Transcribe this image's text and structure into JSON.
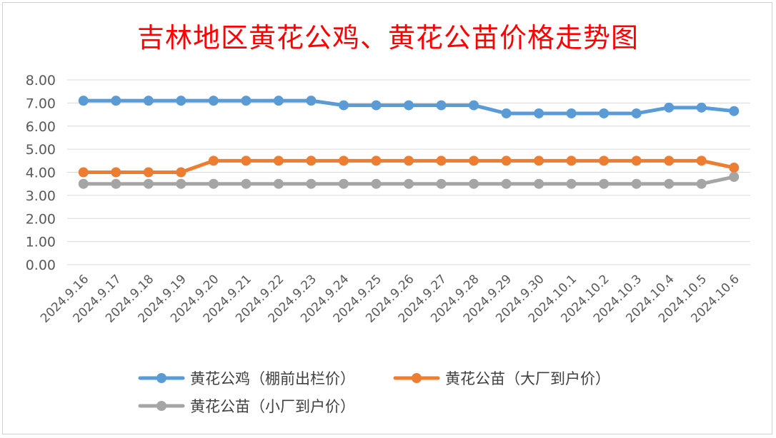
{
  "chart_data": {
    "type": "line",
    "title": "吉林地区黄花公鸡、黄花公苗价格走势图",
    "categories": [
      "2024.9.16",
      "2024.9.17",
      "2024.9.18",
      "2024.9.19",
      "2024.9.20",
      "2024.9.21",
      "2024.9.22",
      "2024.9.23",
      "2024.9.24",
      "2024.9.25",
      "2024.9.26",
      "2024.9.27",
      "2024.9.28",
      "2024.9.29",
      "2024.9.30",
      "2024.10.1",
      "2024.10.2",
      "2024.10.3",
      "2024.10.4",
      "2024.10.5",
      "2024.10.6"
    ],
    "series": [
      {
        "name": "黄花公鸡（棚前出栏价）",
        "color": "#5b9bd5",
        "values": [
          7.1,
          7.1,
          7.1,
          7.1,
          7.1,
          7.1,
          7.1,
          7.1,
          6.9,
          6.9,
          6.9,
          6.9,
          6.9,
          6.55,
          6.55,
          6.55,
          6.55,
          6.55,
          6.8,
          6.8,
          6.65
        ]
      },
      {
        "name": "黄花公苗（大厂到户价）",
        "color": "#ed7d31",
        "values": [
          4.0,
          4.0,
          4.0,
          4.0,
          4.5,
          4.5,
          4.5,
          4.5,
          4.5,
          4.5,
          4.5,
          4.5,
          4.5,
          4.5,
          4.5,
          4.5,
          4.5,
          4.5,
          4.5,
          4.5,
          4.2
        ]
      },
      {
        "name": "黄花公苗（小厂到户价）",
        "color": "#a5a5a5",
        "values": [
          3.5,
          3.5,
          3.5,
          3.5,
          3.5,
          3.5,
          3.5,
          3.5,
          3.5,
          3.5,
          3.5,
          3.5,
          3.5,
          3.5,
          3.5,
          3.5,
          3.5,
          3.5,
          3.5,
          3.5,
          3.8
        ]
      }
    ],
    "ylim": [
      0,
      8
    ],
    "yticks": [
      "0.00",
      "1.00",
      "2.00",
      "3.00",
      "4.00",
      "5.00",
      "6.00",
      "7.00",
      "8.00"
    ],
    "grid": true,
    "legend": "bottom"
  }
}
